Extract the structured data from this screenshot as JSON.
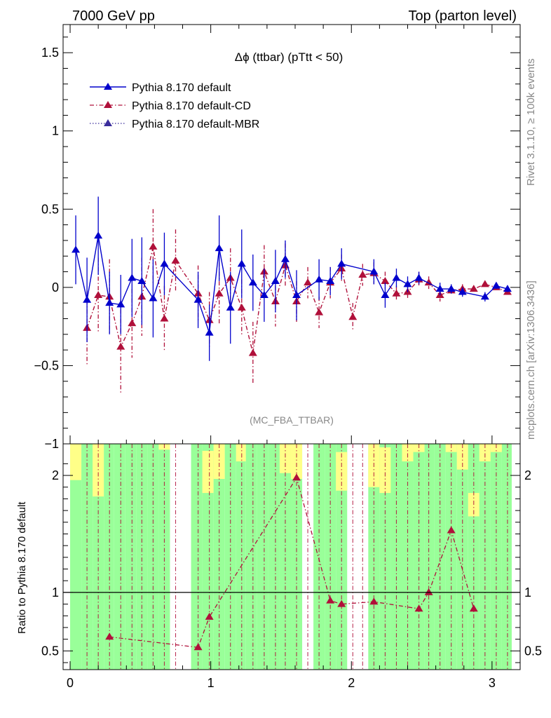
{
  "header": {
    "left": "7000 GeV pp",
    "right": "Top (parton level)"
  },
  "side": {
    "rivet": "Rivet 3.1.10, ≥ 100k events",
    "mcplots": "mcplots.cern.ch [arXiv:1306.3436]"
  },
  "main": {
    "title": "Δϕ (ttbar) (pTtt < 50)",
    "watermark": "(MC_FBA_TTBAR)"
  },
  "ratio": {
    "ylabel": "Ratio to Pythia 8.170 default"
  },
  "colors": {
    "default": "#0000cc",
    "cd": "#b0103a",
    "mbr": "#3a2d9c",
    "band_green": "#99ff99",
    "band_yellow": "#ffff88"
  },
  "chart_data": {
    "type": "line",
    "xlim": [
      -0.05,
      3.2
    ],
    "ylim": [
      -1.0,
      1.68
    ],
    "ratio_ylim": [
      0.34,
      2.27
    ],
    "xticks": [
      "0",
      "1",
      "2",
      "3"
    ],
    "yticks": [
      "−1",
      "−0.5",
      "0",
      "0.5",
      "1",
      "1.5"
    ],
    "ratio_yticks": [
      "0.5",
      "1",
      "2"
    ],
    "legend": [
      "Pythia 8.170 default",
      "Pythia 8.170 default-CD",
      "Pythia 8.170 default-MBR"
    ],
    "series": [
      {
        "name": "Pythia 8.170 default",
        "style": "solid",
        "points": [
          [
            0.04,
            0.24,
            0.22
          ],
          [
            0.12,
            -0.08,
            0.27
          ],
          [
            0.2,
            0.33,
            0.25
          ],
          [
            0.28,
            -0.1,
            0.2
          ],
          [
            0.36,
            -0.11,
            0.19
          ],
          [
            0.44,
            0.06,
            0.25
          ],
          [
            0.51,
            0.04,
            0.28
          ],
          [
            0.59,
            -0.07,
            0.25
          ],
          [
            0.67,
            0.15,
            0.2
          ],
          [
            0.91,
            -0.08,
            0.18
          ],
          [
            0.99,
            -0.29,
            0.18
          ],
          [
            1.06,
            0.25,
            0.21
          ],
          [
            1.14,
            -0.13,
            0.23
          ],
          [
            1.22,
            0.15,
            0.22
          ],
          [
            1.3,
            0.03,
            0.18
          ],
          [
            1.38,
            -0.05,
            0.17
          ],
          [
            1.46,
            0.04,
            0.2
          ],
          [
            1.53,
            0.18,
            0.12
          ],
          [
            1.61,
            -0.05,
            0.16
          ],
          [
            1.77,
            0.05,
            0.13
          ],
          [
            1.85,
            0.04,
            0.09
          ],
          [
            1.93,
            0.15,
            0.1
          ],
          [
            2.16,
            0.1,
            0.08
          ],
          [
            2.24,
            -0.05,
            0.08
          ],
          [
            2.32,
            0.06,
            0.06
          ],
          [
            2.4,
            0.02,
            0.05
          ],
          [
            2.48,
            0.06,
            0.04
          ],
          [
            2.63,
            -0.01,
            0.04
          ],
          [
            2.71,
            -0.01,
            0.03
          ],
          [
            2.79,
            -0.03,
            0.03
          ],
          [
            2.95,
            -0.06,
            0.03
          ],
          [
            3.03,
            0.01,
            0.02
          ],
          [
            3.11,
            -0.01,
            0.02
          ]
        ]
      },
      {
        "name": "Pythia 8.170 default-CD",
        "style": "dashdot",
        "points": [
          [
            0.12,
            -0.26,
            0.24
          ],
          [
            0.2,
            -0.05,
            0.24
          ],
          [
            0.28,
            -0.06,
            0.24
          ],
          [
            0.36,
            -0.38,
            0.3
          ],
          [
            0.44,
            -0.23,
            0.22
          ],
          [
            0.51,
            -0.06,
            0.25
          ],
          [
            0.59,
            0.26,
            0.24
          ],
          [
            0.67,
            -0.2,
            0.21
          ],
          [
            0.75,
            0.17,
            0.2
          ],
          [
            0.91,
            -0.04,
            0.18
          ],
          [
            0.99,
            -0.21,
            0.18
          ],
          [
            1.06,
            -0.04,
            0.2
          ],
          [
            1.14,
            0.06,
            0.19
          ],
          [
            1.22,
            -0.13,
            0.18
          ],
          [
            1.3,
            -0.42,
            0.2
          ],
          [
            1.38,
            0.1,
            0.17
          ],
          [
            1.46,
            -0.09,
            0.16
          ],
          [
            1.53,
            0.14,
            0.14
          ],
          [
            1.61,
            -0.09,
            0.13
          ],
          [
            1.69,
            0.03,
            0.1
          ],
          [
            1.77,
            -0.16,
            0.1
          ],
          [
            1.85,
            0.03,
            0.1
          ],
          [
            1.93,
            0.12,
            0.09
          ],
          [
            2.01,
            -0.19,
            0.09
          ],
          [
            2.08,
            0.08,
            0.07
          ],
          [
            2.16,
            0.09,
            0.07
          ],
          [
            2.24,
            0.04,
            0.06
          ],
          [
            2.32,
            -0.04,
            0.05
          ],
          [
            2.4,
            -0.03,
            0.05
          ],
          [
            2.48,
            0.05,
            0.05
          ],
          [
            2.55,
            0.03,
            0.04
          ],
          [
            2.63,
            -0.05,
            0.04
          ],
          [
            2.71,
            -0.02,
            0.03
          ],
          [
            2.79,
            -0.01,
            0.03
          ],
          [
            2.87,
            -0.01,
            0.02
          ],
          [
            2.95,
            0.02,
            0.02
          ],
          [
            3.03,
            0.0,
            0.02
          ],
          [
            3.11,
            -0.03,
            0.02
          ]
        ]
      },
      {
        "name": "Pythia 8.170 default-MBR",
        "style": "dotted",
        "points": []
      }
    ],
    "ratio_points": [
      [
        0.28,
        0.62
      ],
      [
        0.91,
        0.53
      ],
      [
        0.99,
        0.79
      ],
      [
        1.61,
        1.98
      ],
      [
        1.85,
        0.93
      ],
      [
        1.93,
        0.9
      ],
      [
        2.16,
        0.92
      ],
      [
        2.48,
        0.86
      ],
      [
        2.55,
        1.0
      ],
      [
        2.71,
        1.53
      ],
      [
        2.87,
        0.86
      ]
    ],
    "ratio_band": [
      [
        0.0,
        0.08,
        1.96,
        2.27
      ],
      [
        0.08,
        0.16,
        2.27,
        2.27
      ],
      [
        0.16,
        0.24,
        1.82,
        2.27
      ],
      [
        0.24,
        0.31,
        2.27,
        2.27
      ],
      [
        0.31,
        0.39,
        2.27,
        2.27
      ],
      [
        0.39,
        0.47,
        2.27,
        2.27
      ],
      [
        0.47,
        0.55,
        2.27,
        2.27
      ],
      [
        0.55,
        0.63,
        2.27,
        2.27
      ],
      [
        0.63,
        0.71,
        2.22,
        2.27
      ],
      [
        0.86,
        0.94,
        2.27,
        2.27
      ],
      [
        0.94,
        1.02,
        1.85,
        2.21
      ],
      [
        1.02,
        1.1,
        1.97,
        2.27
      ],
      [
        1.1,
        1.18,
        2.27,
        2.27
      ],
      [
        1.18,
        1.25,
        2.12,
        2.27
      ],
      [
        1.25,
        1.33,
        2.27,
        2.27
      ],
      [
        1.33,
        1.41,
        2.27,
        2.27
      ],
      [
        1.41,
        1.49,
        2.27,
        2.27
      ],
      [
        1.49,
        1.57,
        2.02,
        2.27
      ],
      [
        1.57,
        1.65,
        1.97,
        2.27
      ],
      [
        1.73,
        1.81,
        2.27,
        2.27
      ],
      [
        1.81,
        1.89,
        2.27,
        2.27
      ],
      [
        1.89,
        1.97,
        1.87,
        2.2
      ],
      [
        2.12,
        2.2,
        1.9,
        2.27
      ],
      [
        2.2,
        2.28,
        1.85,
        2.24
      ],
      [
        2.28,
        2.36,
        2.27,
        2.27
      ],
      [
        2.36,
        2.44,
        2.12,
        2.27
      ],
      [
        2.44,
        2.52,
        2.2,
        2.27
      ],
      [
        2.52,
        2.59,
        2.27,
        2.27
      ],
      [
        2.59,
        2.67,
        2.27,
        2.27
      ],
      [
        2.67,
        2.75,
        2.2,
        2.27
      ],
      [
        2.75,
        2.83,
        2.05,
        2.27
      ],
      [
        2.83,
        2.91,
        1.65,
        1.85
      ],
      [
        2.91,
        2.99,
        2.12,
        2.27
      ],
      [
        2.99,
        3.07,
        2.2,
        2.27
      ],
      [
        3.07,
        3.14,
        2.27,
        2.27
      ]
    ]
  }
}
